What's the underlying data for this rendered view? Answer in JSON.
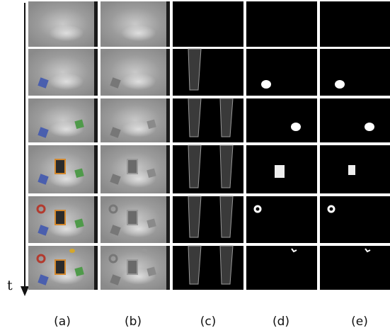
{
  "figure": {
    "time_axis_label": "t",
    "columns": [
      {
        "label": "(a)",
        "kind": "scene"
      },
      {
        "label": "(b)",
        "kind": "scene-gray"
      },
      {
        "label": "(c)",
        "kind": "gripper-edges"
      },
      {
        "label": "(d)",
        "kind": "masks"
      },
      {
        "label": "(e)",
        "kind": "masks"
      }
    ],
    "row_count": 6,
    "colors": {
      "background": "#ffffff",
      "tile_dark": "#000000",
      "tile_scene": "#9a9a9a",
      "object_blue": "#4a5fae",
      "object_green": "#4f9a4a",
      "object_red": "#b33a2e",
      "object_yellow": "#d4a72c",
      "book_orange": "#d4882c"
    }
  }
}
